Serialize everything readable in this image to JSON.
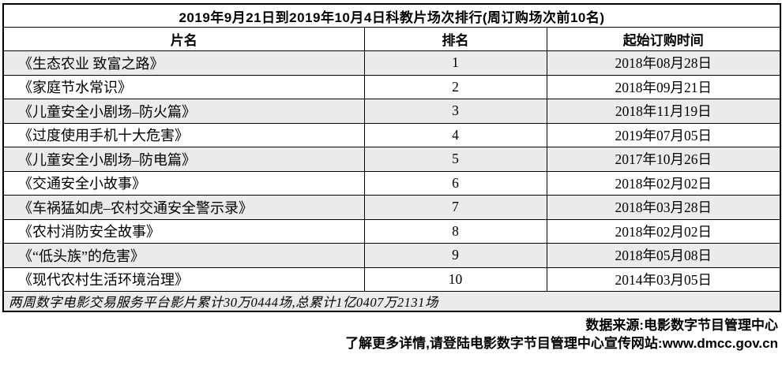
{
  "table": {
    "title": "2019年9月21日到2019年10月4日科教片场次排行(周订购场次前10名)",
    "headers": {
      "film": "片名",
      "rank": "排名",
      "date": "起始订购时间"
    },
    "rows": [
      {
        "film": "《生态农业 致富之路》",
        "rank": "1",
        "date": "2018年08月28日"
      },
      {
        "film": "《家庭节水常识》",
        "rank": "2",
        "date": "2018年09月21日"
      },
      {
        "film": "《儿童安全小剧场–防火篇》",
        "rank": "3",
        "date": "2018年11月19日"
      },
      {
        "film": "《过度使用手机十大危害》",
        "rank": "4",
        "date": "2019年07月05日"
      },
      {
        "film": "《儿童安全小剧场–防电篇》",
        "rank": "5",
        "date": "2017年10月26日"
      },
      {
        "film": "《交通安全小故事》",
        "rank": "6",
        "date": "2018年02月02日"
      },
      {
        "film": "《车祸猛如虎–农村交通安全警示录》",
        "rank": "7",
        "date": "2018年03月28日"
      },
      {
        "film": "《农村消防安全故事》",
        "rank": "8",
        "date": "2018年02月02日"
      },
      {
        "film": "《“低头族”的危害》",
        "rank": "9",
        "date": "2018年05月08日"
      },
      {
        "film": "《现代农村生活环境治理》",
        "rank": "10",
        "date": "2014年03月05日"
      }
    ],
    "footer": "两周数字电影交易服务平台影片累计30万0444场,总累计1亿0407万2131场"
  },
  "notes": {
    "source": "数据来源:电影数字节目管理中心",
    "more_info": "了解更多详情,请登陆电影数字节目管理中心宣传网站:www.dmcc.gov.cn"
  },
  "colors": {
    "stripe": "#ebebeb",
    "border": "#000000",
    "background": "#ffffff"
  }
}
